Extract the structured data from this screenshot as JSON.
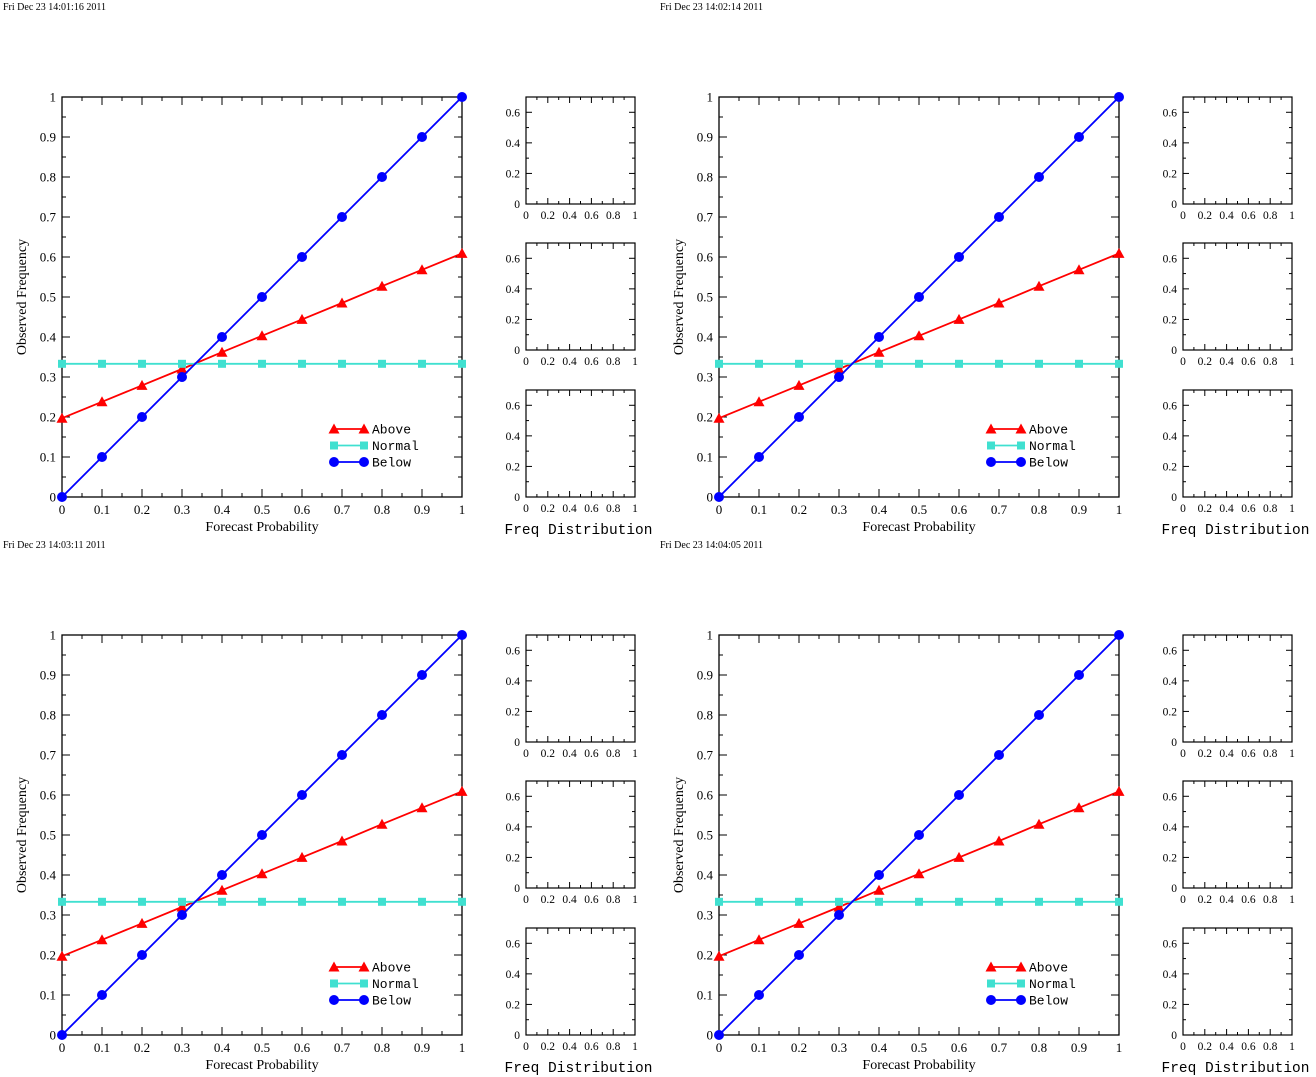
{
  "page": {
    "panels": [
      {
        "timestamp": "Fri Dec 23 14:01:16 2011"
      },
      {
        "timestamp": "Fri Dec 23 14:02:14 2011"
      },
      {
        "timestamp": "Fri Dec 23 14:03:11 2011"
      },
      {
        "timestamp": "Fri Dec 23 14:04:05 2011"
      }
    ]
  },
  "chart_data": {
    "type": "line",
    "xlabel": "Forecast Probability",
    "ylabel": "Observed Frequency",
    "xlim": [
      0,
      1
    ],
    "ylim": [
      0,
      1
    ],
    "x": [
      0,
      0.1,
      0.2,
      0.3,
      0.4,
      0.5,
      0.6,
      0.7,
      0.8,
      0.9,
      1
    ],
    "xtick_labels": [
      "0",
      "0.1",
      "0.2",
      "0.3",
      "0.4",
      "0.5",
      "0.6",
      "0.7",
      "0.8",
      "0.9",
      "1"
    ],
    "ytick_labels": [
      "0",
      "0.1",
      "0.2",
      "0.3",
      "0.4",
      "0.5",
      "0.6",
      "0.7",
      "0.8",
      "0.9",
      "1"
    ],
    "legend_position": "bottom-right",
    "series": [
      {
        "name": "Above",
        "color": "#ff0000",
        "marker": "triangle",
        "values": [
          0.197,
          0.238,
          0.279,
          0.32,
          0.362,
          0.403,
          0.444,
          0.485,
          0.527,
          0.568,
          0.609
        ]
      },
      {
        "name": "Normal",
        "color": "#40e0d0",
        "marker": "square",
        "values": [
          0.333,
          0.333,
          0.333,
          0.333,
          0.333,
          0.333,
          0.333,
          0.333,
          0.333,
          0.333,
          0.333
        ]
      },
      {
        "name": "Below",
        "color": "#0000ff",
        "marker": "circle",
        "values": [
          0,
          0.1,
          0.2,
          0.3,
          0.4,
          0.5,
          0.6,
          0.7,
          0.8,
          0.9,
          1
        ]
      }
    ],
    "freq_distribution": {
      "label": "Freq Distribution",
      "subplots": 3,
      "xlim": [
        0,
        1
      ],
      "ylim": [
        0,
        0.7
      ],
      "xtick_labels": [
        "0",
        "0.2",
        "0.4",
        "0.6",
        "0.8",
        "1"
      ],
      "ytick_labels": [
        "0",
        "0.2",
        "0.4",
        "0.6"
      ]
    }
  }
}
